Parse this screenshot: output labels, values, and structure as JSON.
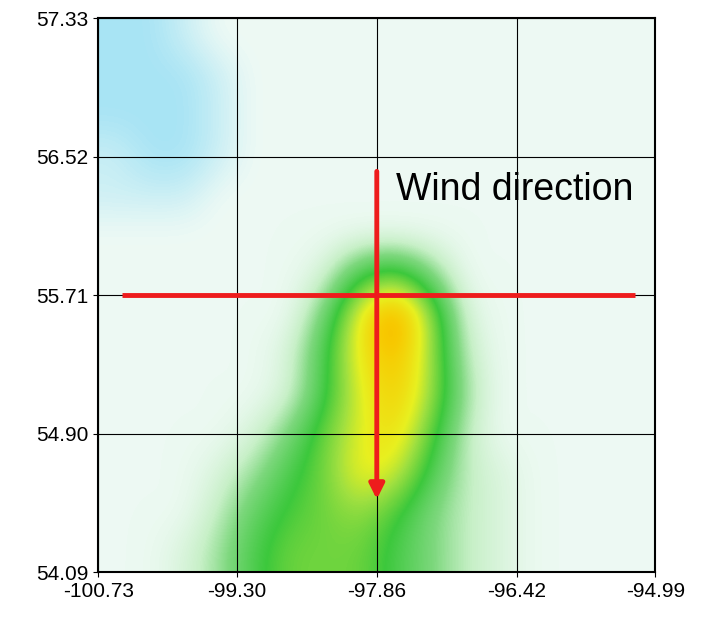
{
  "chart_data": {
    "type": "heatmap",
    "xlim": [
      -100.73,
      -94.99
    ],
    "ylim": [
      54.09,
      57.33
    ],
    "xticks": [
      -100.73,
      {
        "value": -99.3,
        "label": "-99.30"
      },
      -97.86,
      -96.42,
      -94.99
    ],
    "yticks": [
      54.09,
      {
        "value": 54.9,
        "label": "54.90"
      },
      55.71,
      56.52,
      57.33
    ],
    "grid": true,
    "annotation": "Wind direction",
    "transect_horizontal": {
      "y": 55.71,
      "x": [
        -100.48,
        -95.2
      ]
    },
    "wind_arrow": {
      "x": -97.86,
      "y": [
        56.45,
        54.5
      ]
    },
    "cells": [
      [
        0,
        0,
        0.5,
        1,
        1,
        1,
        1,
        1,
        1,
        1,
        1,
        1,
        1,
        1,
        1,
        1
      ],
      [
        0,
        0,
        0,
        0.5,
        1,
        1,
        1,
        1,
        1,
        1,
        1,
        1,
        1,
        1,
        1,
        1
      ],
      [
        0,
        0,
        0,
        0.5,
        1,
        1,
        1,
        1,
        1,
        1,
        1,
        1,
        1,
        1,
        1,
        1
      ],
      [
        0.5,
        0,
        0,
        0.5,
        1,
        1,
        1,
        1,
        1,
        1,
        1,
        1,
        1,
        1,
        1,
        1
      ],
      [
        0.5,
        0.5,
        0.5,
        1,
        1,
        1,
        1,
        1,
        1,
        1,
        1,
        1,
        1,
        1,
        1,
        1
      ],
      [
        1,
        1,
        1,
        1,
        1,
        1,
        1,
        1,
        1,
        1,
        1,
        1,
        1,
        1,
        1,
        1
      ],
      [
        1,
        1,
        1,
        1,
        1,
        1,
        1.5,
        4,
        5,
        3,
        1,
        1,
        1,
        1,
        1,
        1
      ],
      [
        1,
        1,
        1,
        1,
        1,
        1,
        3,
        7,
        9.5,
        6,
        1.5,
        1,
        1,
        1,
        1,
        1
      ],
      [
        1,
        1,
        1,
        1,
        1,
        1.5,
        4,
        7,
        8.5,
        6,
        2,
        1,
        1,
        1,
        1,
        1
      ],
      [
        1,
        1,
        1,
        1,
        1,
        1.5,
        4,
        6.5,
        8,
        6,
        2.5,
        1,
        1,
        1,
        1,
        1
      ],
      [
        1,
        1,
        1,
        1,
        1.5,
        3,
        5,
        6.5,
        7.5,
        5,
        2,
        1,
        1,
        1,
        1,
        1
      ],
      [
        1,
        1,
        1,
        1.5,
        2.5,
        4,
        5,
        7,
        6.5,
        4,
        2,
        1.5,
        1,
        1,
        1,
        1
      ],
      [
        1,
        1,
        1,
        2,
        3.5,
        4.5,
        5,
        5.5,
        4.5,
        3,
        2,
        1.5,
        1,
        1,
        1,
        1
      ],
      [
        1,
        1,
        1.5,
        2.5,
        4,
        5,
        5,
        5,
        4,
        3,
        2,
        1.5,
        1,
        1,
        1,
        1
      ]
    ]
  }
}
